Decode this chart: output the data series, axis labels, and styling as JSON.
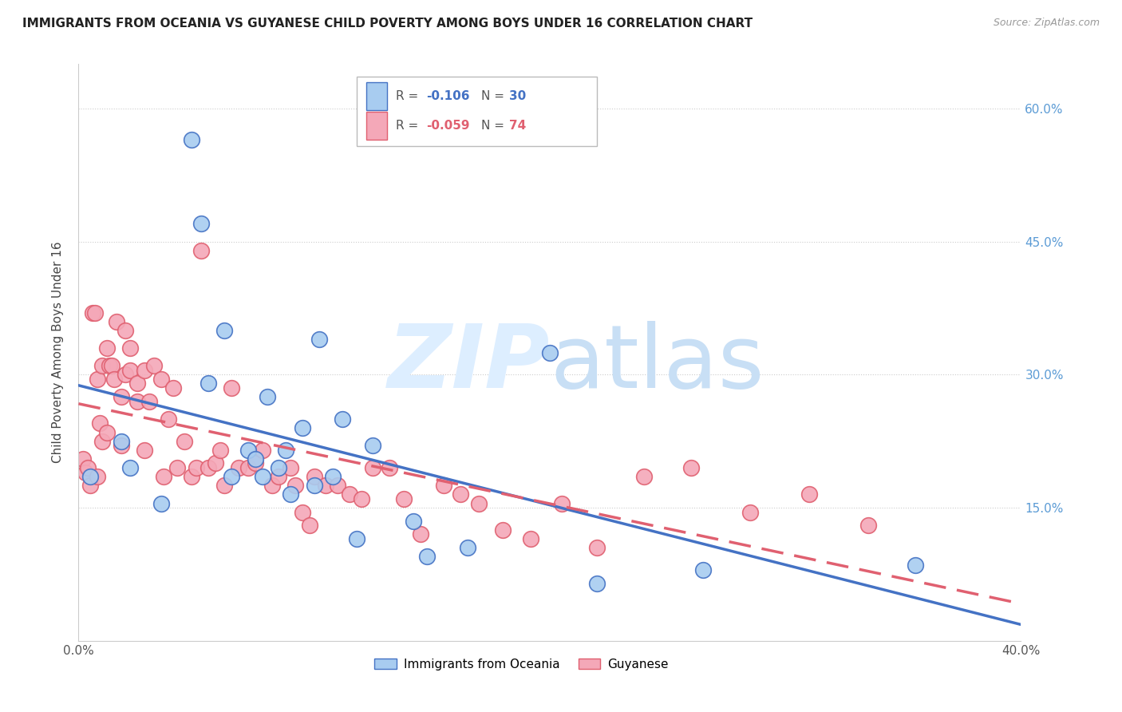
{
  "title": "IMMIGRANTS FROM OCEANIA VS GUYANESE CHILD POVERTY AMONG BOYS UNDER 16 CORRELATION CHART",
  "source": "Source: ZipAtlas.com",
  "ylabel": "Child Poverty Among Boys Under 16",
  "xlim": [
    0.0,
    0.4
  ],
  "ylim": [
    0.0,
    0.65
  ],
  "color_blue": "#a8ccf0",
  "color_pink": "#f4a8b8",
  "color_line_blue": "#4472c4",
  "color_line_pink": "#e06070",
  "watermark_color": "#ddeeff",
  "blue_scatter_x": [
    0.005,
    0.022,
    0.018,
    0.048,
    0.052,
    0.062,
    0.065,
    0.072,
    0.075,
    0.078,
    0.08,
    0.085,
    0.09,
    0.095,
    0.1,
    0.102,
    0.108,
    0.112,
    0.118,
    0.125,
    0.142,
    0.148,
    0.165,
    0.2,
    0.22,
    0.265,
    0.355,
    0.035,
    0.055,
    0.088
  ],
  "blue_scatter_y": [
    0.185,
    0.195,
    0.225,
    0.565,
    0.47,
    0.35,
    0.185,
    0.215,
    0.205,
    0.185,
    0.275,
    0.195,
    0.165,
    0.24,
    0.175,
    0.34,
    0.185,
    0.25,
    0.115,
    0.22,
    0.135,
    0.095,
    0.105,
    0.325,
    0.065,
    0.08,
    0.085,
    0.155,
    0.29,
    0.215
  ],
  "pink_scatter_x": [
    0.002,
    0.003,
    0.004,
    0.005,
    0.006,
    0.007,
    0.008,
    0.008,
    0.009,
    0.01,
    0.01,
    0.012,
    0.012,
    0.013,
    0.014,
    0.015,
    0.016,
    0.018,
    0.018,
    0.02,
    0.02,
    0.022,
    0.022,
    0.025,
    0.025,
    0.028,
    0.028,
    0.03,
    0.032,
    0.035,
    0.036,
    0.038,
    0.04,
    0.042,
    0.045,
    0.048,
    0.05,
    0.052,
    0.055,
    0.058,
    0.06,
    0.062,
    0.065,
    0.068,
    0.072,
    0.075,
    0.078,
    0.082,
    0.085,
    0.09,
    0.092,
    0.095,
    0.098,
    0.1,
    0.105,
    0.11,
    0.115,
    0.12,
    0.125,
    0.132,
    0.138,
    0.145,
    0.155,
    0.162,
    0.17,
    0.18,
    0.192,
    0.205,
    0.22,
    0.24,
    0.26,
    0.285,
    0.31,
    0.335
  ],
  "pink_scatter_y": [
    0.205,
    0.19,
    0.195,
    0.175,
    0.37,
    0.37,
    0.295,
    0.185,
    0.245,
    0.225,
    0.31,
    0.235,
    0.33,
    0.31,
    0.31,
    0.295,
    0.36,
    0.275,
    0.22,
    0.3,
    0.35,
    0.33,
    0.305,
    0.29,
    0.27,
    0.215,
    0.305,
    0.27,
    0.31,
    0.295,
    0.185,
    0.25,
    0.285,
    0.195,
    0.225,
    0.185,
    0.195,
    0.44,
    0.195,
    0.2,
    0.215,
    0.175,
    0.285,
    0.195,
    0.195,
    0.2,
    0.215,
    0.175,
    0.185,
    0.195,
    0.175,
    0.145,
    0.13,
    0.185,
    0.175,
    0.175,
    0.165,
    0.16,
    0.195,
    0.195,
    0.16,
    0.12,
    0.175,
    0.165,
    0.155,
    0.125,
    0.115,
    0.155,
    0.105,
    0.185,
    0.195,
    0.145,
    0.165,
    0.13
  ]
}
